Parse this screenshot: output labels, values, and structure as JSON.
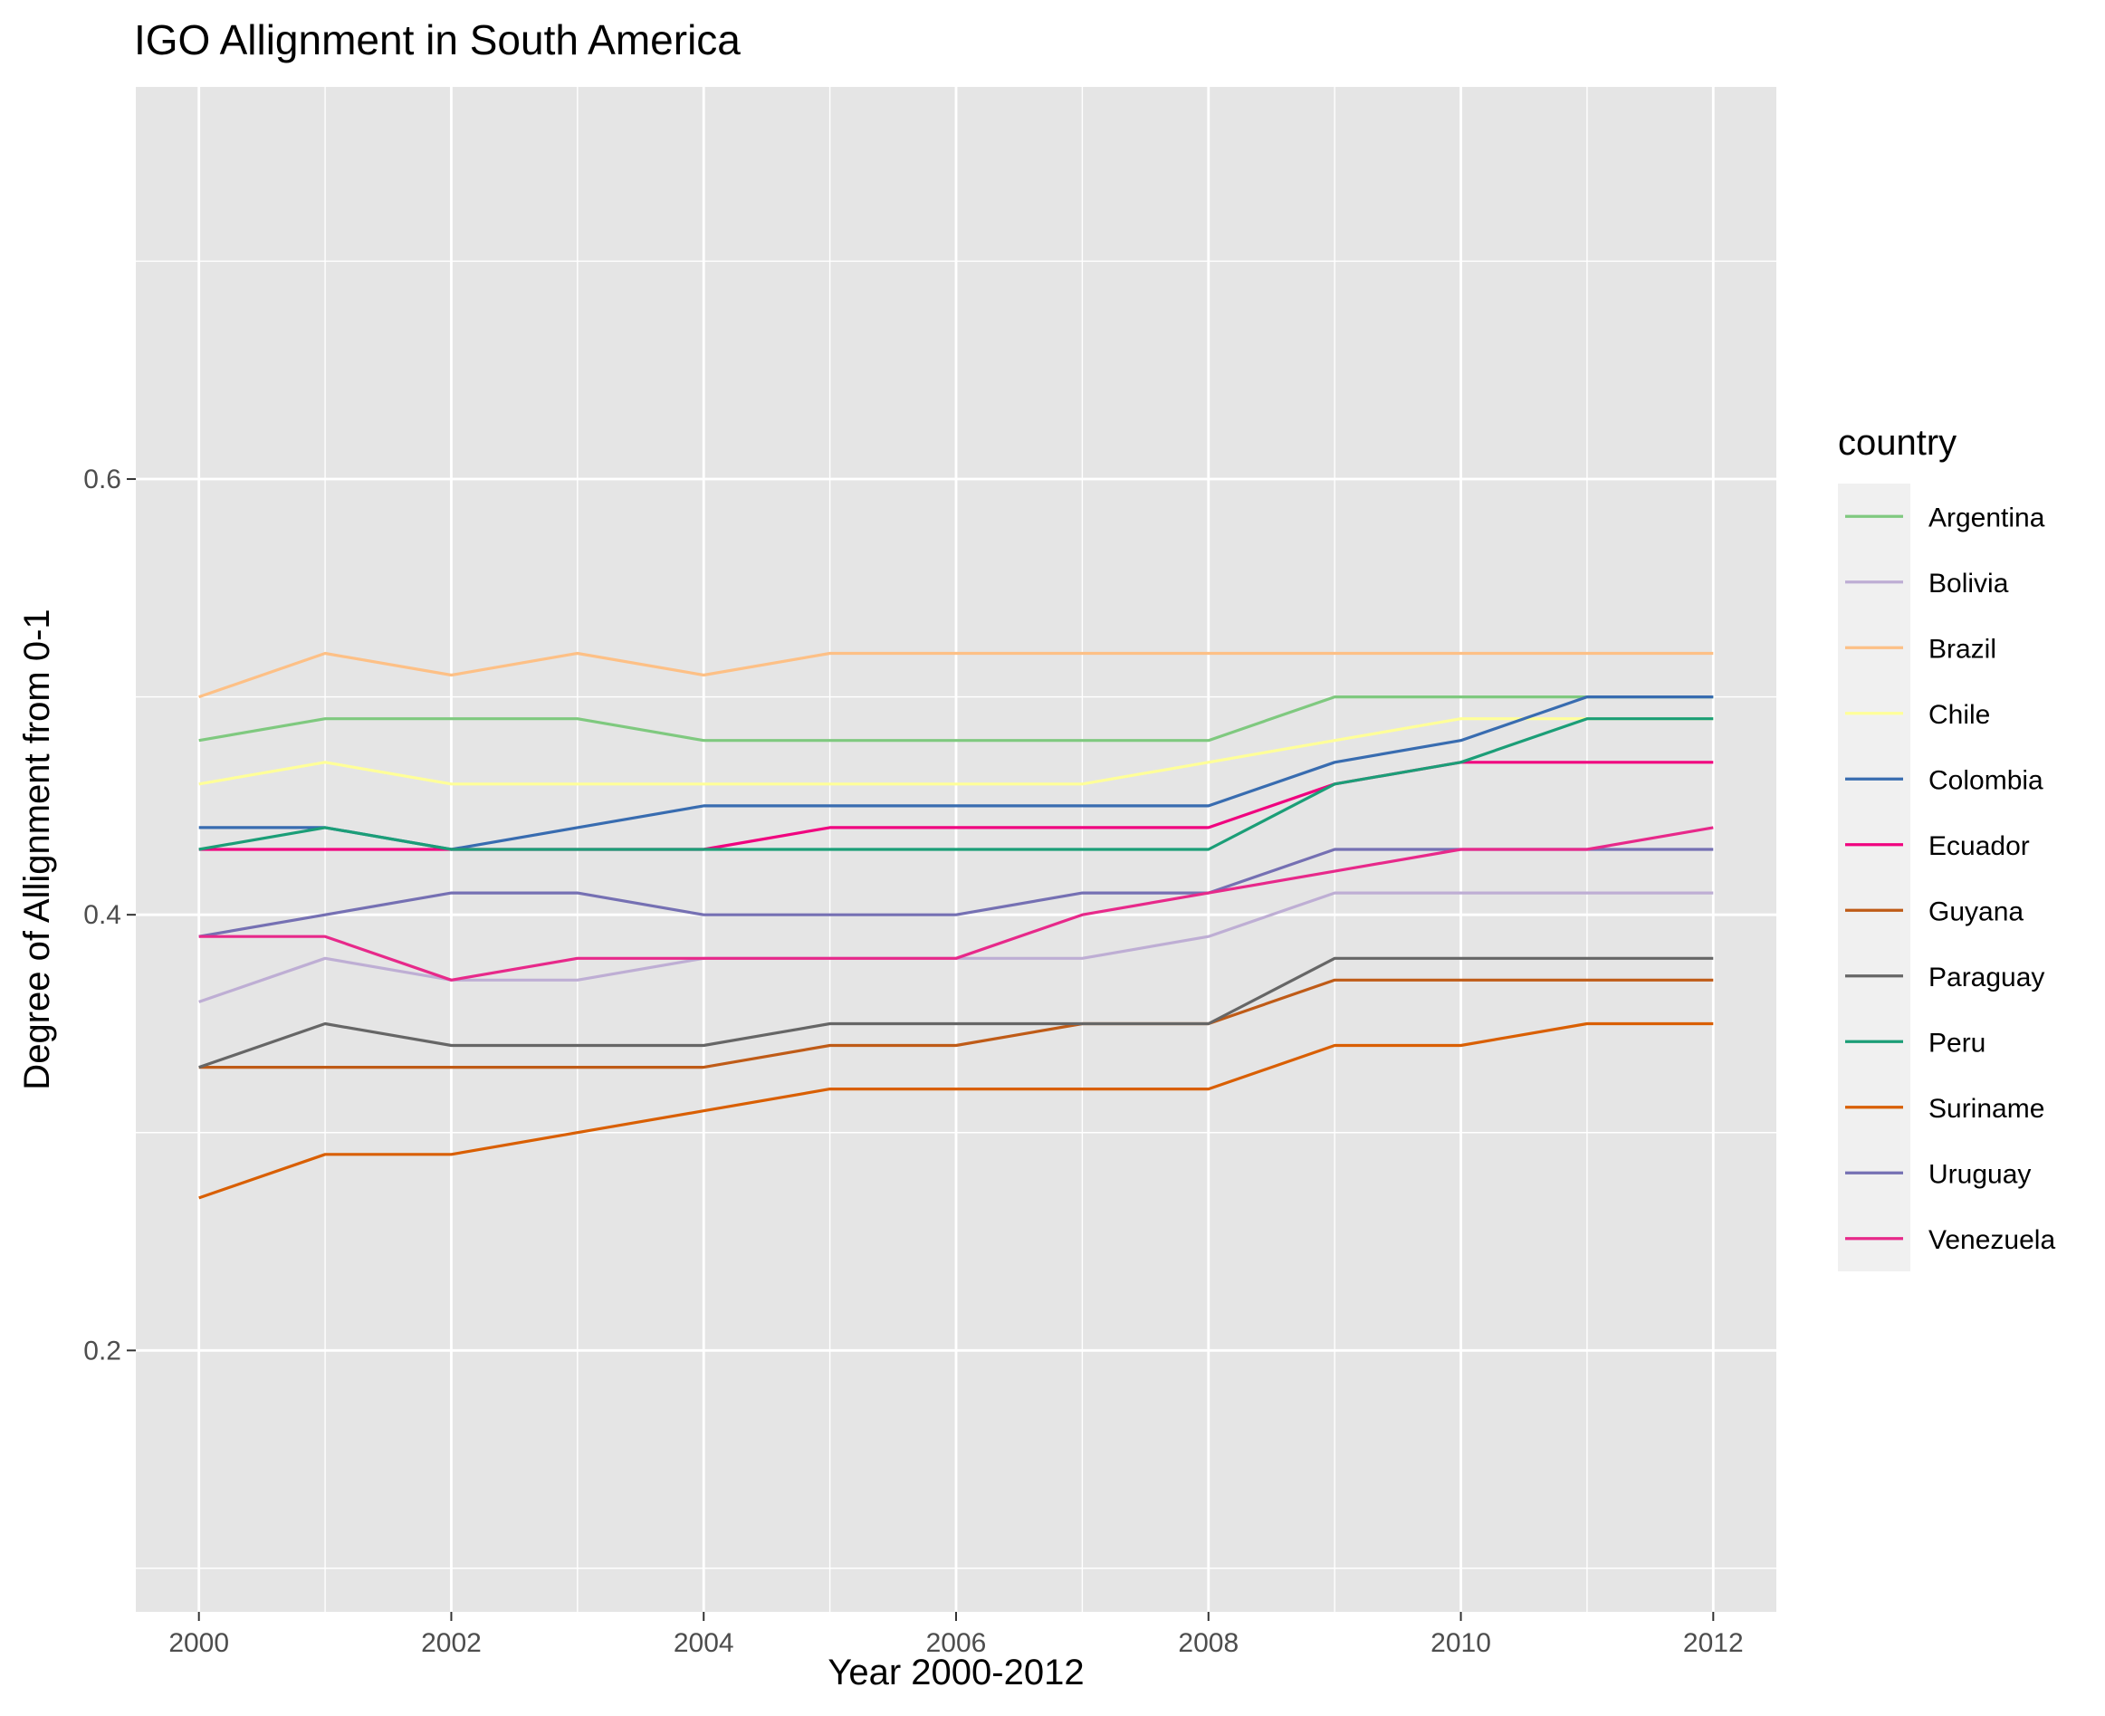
{
  "chart_data": {
    "type": "line",
    "title": "IGO Allignment in South America",
    "xlabel": "Year 2000-2012",
    "ylabel": "Degree of Allignment from 0-1",
    "x": [
      2000,
      2001,
      2002,
      2003,
      2004,
      2005,
      2006,
      2007,
      2008,
      2009,
      2010,
      2011,
      2012
    ],
    "xlim": [
      1999.5,
      2012.5
    ],
    "ylim": [
      0.08,
      0.78
    ],
    "x_ticks": [
      2000,
      2002,
      2004,
      2006,
      2008,
      2010,
      2012
    ],
    "x_tick_labels": [
      "2000",
      "2002",
      "2004",
      "2006",
      "2008",
      "2010",
      "2012"
    ],
    "x_minor_ticks": [
      2001,
      2003,
      2005,
      2007,
      2009,
      2011
    ],
    "y_ticks": [
      0.2,
      0.4,
      0.6
    ],
    "y_tick_labels": [
      "0.2",
      "0.4",
      "0.6"
    ],
    "y_minor_ticks": [
      0.1,
      0.3,
      0.5,
      0.7
    ],
    "grid": true,
    "legend_title": "country",
    "legend_position": "right",
    "series": [
      {
        "name": "Argentina",
        "color": "#7fc97f",
        "values": [
          0.48,
          0.49,
          0.49,
          0.49,
          0.48,
          0.48,
          0.48,
          0.48,
          0.48,
          0.5,
          0.5,
          0.5,
          0.5
        ]
      },
      {
        "name": "Bolivia",
        "color": "#beaed4",
        "values": [
          0.36,
          0.38,
          0.37,
          0.37,
          0.38,
          0.38,
          0.38,
          0.38,
          0.39,
          0.41,
          0.41,
          0.41,
          0.41
        ]
      },
      {
        "name": "Brazil",
        "color": "#fdc086",
        "values": [
          0.5,
          0.52,
          0.51,
          0.52,
          0.51,
          0.52,
          0.52,
          0.52,
          0.52,
          0.52,
          0.52,
          0.52,
          0.52
        ]
      },
      {
        "name": "Chile",
        "color": "#ffff99",
        "values": [
          0.46,
          0.47,
          0.46,
          0.46,
          0.46,
          0.46,
          0.46,
          0.46,
          0.47,
          0.48,
          0.49,
          0.49,
          0.49
        ]
      },
      {
        "name": "Colombia",
        "color": "#386cb0",
        "values": [
          0.44,
          0.44,
          0.43,
          0.44,
          0.45,
          0.45,
          0.45,
          0.45,
          0.45,
          0.47,
          0.48,
          0.5,
          0.5
        ]
      },
      {
        "name": "Ecuador",
        "color": "#f0027f",
        "values": [
          0.43,
          0.43,
          0.43,
          0.43,
          0.43,
          0.44,
          0.44,
          0.44,
          0.44,
          0.46,
          0.47,
          0.47,
          0.47
        ]
      },
      {
        "name": "Guyana",
        "color": "#bf5b17",
        "values": [
          0.33,
          0.33,
          0.33,
          0.33,
          0.33,
          0.34,
          0.34,
          0.35,
          0.35,
          0.37,
          0.37,
          0.37,
          0.37
        ]
      },
      {
        "name": "Paraguay",
        "color": "#666666",
        "values": [
          0.33,
          0.35,
          0.34,
          0.34,
          0.34,
          0.35,
          0.35,
          0.35,
          0.35,
          0.38,
          0.38,
          0.38,
          0.38
        ]
      },
      {
        "name": "Peru",
        "color": "#1b9e77",
        "values": [
          0.43,
          0.44,
          0.43,
          0.43,
          0.43,
          0.43,
          0.43,
          0.43,
          0.43,
          0.46,
          0.47,
          0.49,
          0.49
        ]
      },
      {
        "name": "Suriname",
        "color": "#d95f02",
        "values": [
          0.27,
          0.29,
          0.29,
          0.3,
          0.31,
          0.32,
          0.32,
          0.32,
          0.32,
          0.34,
          0.34,
          0.35,
          0.35
        ]
      },
      {
        "name": "Uruguay",
        "color": "#7570b3",
        "values": [
          0.39,
          0.4,
          0.41,
          0.41,
          0.4,
          0.4,
          0.4,
          0.41,
          0.41,
          0.43,
          0.43,
          0.43,
          0.43
        ]
      },
      {
        "name": "Venezuela",
        "color": "#e7298a",
        "values": [
          0.39,
          0.39,
          0.37,
          0.38,
          0.38,
          0.38,
          0.38,
          0.4,
          0.41,
          0.42,
          0.43,
          0.43,
          0.44
        ]
      }
    ]
  },
  "style": {
    "panel_background": "#e5e5e5",
    "grid_color": "#ffffff",
    "legend_key_background": "#f0f0f0",
    "tick_color": "#333333"
  }
}
